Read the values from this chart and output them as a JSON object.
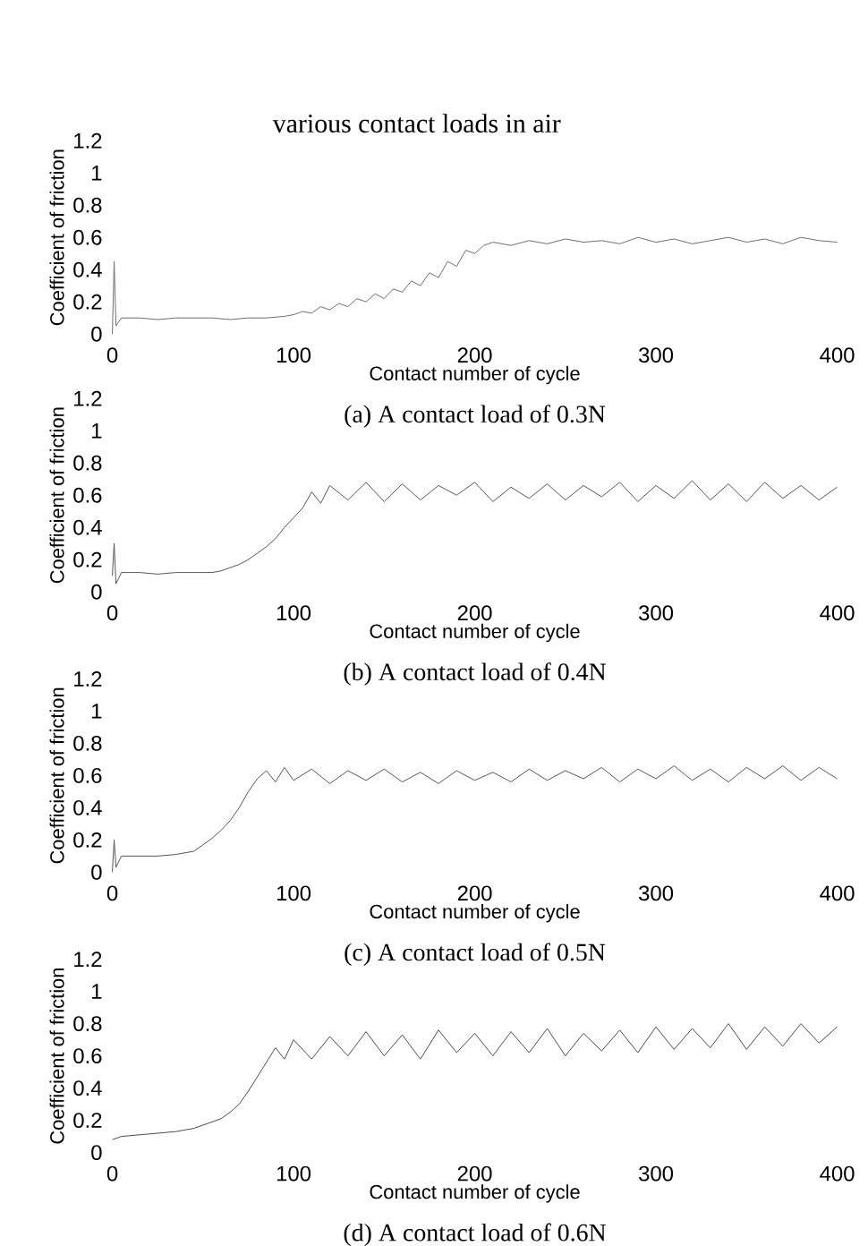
{
  "chart_data": [
    {
      "type": "line",
      "title": "various contact loads in air",
      "xlabel": "Contact number of cycle",
      "ylabel": "Coefficient of friction",
      "annotations": [
        "(a) A contact load of 0.3N"
      ],
      "marker": "none",
      "xlim": [
        0,
        400
      ],
      "ylim": [
        0,
        1.2
      ],
      "xticks": [
        0,
        100,
        200,
        300,
        400
      ],
      "yticks": [
        0,
        0.2,
        0.4,
        0.6,
        0.8,
        1,
        1.2
      ],
      "x": [
        0,
        1,
        2,
        5,
        15,
        25,
        35,
        45,
        55,
        65,
        75,
        85,
        95,
        100,
        105,
        110,
        115,
        120,
        125,
        130,
        135,
        140,
        145,
        150,
        155,
        160,
        165,
        170,
        175,
        180,
        185,
        190,
        195,
        200,
        205,
        210,
        220,
        230,
        240,
        250,
        260,
        270,
        280,
        290,
        300,
        310,
        320,
        330,
        340,
        350,
        360,
        370,
        380,
        390,
        400
      ],
      "series": [
        {
          "color": "#6e6e6e",
          "values": [
            0.0,
            0.45,
            0.05,
            0.1,
            0.1,
            0.09,
            0.1,
            0.1,
            0.1,
            0.09,
            0.1,
            0.1,
            0.11,
            0.12,
            0.14,
            0.13,
            0.17,
            0.15,
            0.19,
            0.17,
            0.22,
            0.2,
            0.25,
            0.22,
            0.28,
            0.26,
            0.33,
            0.3,
            0.38,
            0.35,
            0.45,
            0.42,
            0.52,
            0.5,
            0.55,
            0.57,
            0.55,
            0.58,
            0.56,
            0.59,
            0.57,
            0.58,
            0.56,
            0.6,
            0.57,
            0.59,
            0.56,
            0.58,
            0.6,
            0.57,
            0.59,
            0.56,
            0.6,
            0.58,
            0.57
          ]
        }
      ]
    },
    {
      "type": "line",
      "xlabel": "Contact number of cycle",
      "ylabel": "Coefficient of friction",
      "annotations": [
        "(b) A contact load of 0.4N"
      ],
      "marker": "none",
      "xlim": [
        0,
        400
      ],
      "ylim": [
        0,
        1.2
      ],
      "xticks": [
        0,
        100,
        200,
        300,
        400
      ],
      "yticks": [
        0,
        0.2,
        0.4,
        0.6,
        0.8,
        1,
        1.2
      ],
      "x": [
        0,
        1,
        2,
        5,
        15,
        25,
        35,
        45,
        55,
        60,
        65,
        70,
        75,
        80,
        85,
        90,
        95,
        100,
        105,
        110,
        115,
        120,
        130,
        140,
        150,
        160,
        170,
        180,
        190,
        200,
        210,
        220,
        230,
        240,
        250,
        260,
        270,
        280,
        290,
        300,
        310,
        320,
        330,
        340,
        350,
        360,
        370,
        380,
        390,
        400
      ],
      "series": [
        {
          "color": "#555555",
          "values": [
            0.1,
            0.3,
            0.05,
            0.12,
            0.12,
            0.11,
            0.12,
            0.12,
            0.12,
            0.13,
            0.15,
            0.17,
            0.2,
            0.24,
            0.28,
            0.33,
            0.4,
            0.46,
            0.52,
            0.62,
            0.55,
            0.66,
            0.57,
            0.68,
            0.56,
            0.67,
            0.57,
            0.66,
            0.6,
            0.68,
            0.56,
            0.65,
            0.58,
            0.67,
            0.57,
            0.66,
            0.59,
            0.68,
            0.56,
            0.66,
            0.58,
            0.69,
            0.57,
            0.67,
            0.56,
            0.68,
            0.58,
            0.66,
            0.57,
            0.65
          ]
        }
      ]
    },
    {
      "type": "line",
      "xlabel": "Contact number of cycle",
      "ylabel": "Coefficient of friction",
      "annotations": [
        "(c) A contact load of 0.5N"
      ],
      "marker": "none",
      "xlim": [
        0,
        400
      ],
      "ylim": [
        0,
        1.2
      ],
      "xticks": [
        0,
        100,
        200,
        300,
        400
      ],
      "yticks": [
        0,
        0.2,
        0.4,
        0.6,
        0.8,
        1,
        1.2
      ],
      "x": [
        0,
        1,
        2,
        5,
        15,
        25,
        35,
        45,
        50,
        55,
        60,
        65,
        70,
        75,
        80,
        85,
        90,
        95,
        100,
        110,
        120,
        130,
        140,
        150,
        160,
        170,
        180,
        190,
        200,
        210,
        220,
        230,
        240,
        250,
        260,
        270,
        280,
        290,
        300,
        310,
        320,
        330,
        340,
        350,
        360,
        370,
        380,
        390,
        400
      ],
      "series": [
        {
          "color": "#555555",
          "values": [
            0.0,
            0.2,
            0.03,
            0.1,
            0.1,
            0.1,
            0.11,
            0.13,
            0.17,
            0.21,
            0.26,
            0.32,
            0.4,
            0.5,
            0.58,
            0.63,
            0.56,
            0.65,
            0.57,
            0.64,
            0.55,
            0.63,
            0.57,
            0.64,
            0.56,
            0.62,
            0.55,
            0.63,
            0.57,
            0.62,
            0.56,
            0.64,
            0.57,
            0.63,
            0.58,
            0.65,
            0.56,
            0.64,
            0.58,
            0.66,
            0.57,
            0.64,
            0.56,
            0.65,
            0.58,
            0.66,
            0.57,
            0.65,
            0.58
          ]
        }
      ]
    },
    {
      "type": "line",
      "xlabel": "Contact number of cycle",
      "ylabel": "Coefficient of friction",
      "annotations": [
        "(d) A contact load of 0.6N"
      ],
      "marker": "none",
      "xlim": [
        0,
        400
      ],
      "ylim": [
        0,
        1.2
      ],
      "xticks": [
        0,
        100,
        200,
        300,
        400
      ],
      "yticks": [
        0,
        0.2,
        0.4,
        0.6,
        0.8,
        1,
        1.2
      ],
      "x": [
        0,
        5,
        15,
        25,
        35,
        45,
        50,
        55,
        60,
        65,
        70,
        75,
        80,
        85,
        90,
        95,
        100,
        110,
        120,
        130,
        140,
        150,
        160,
        170,
        180,
        190,
        200,
        210,
        220,
        230,
        240,
        250,
        260,
        270,
        280,
        290,
        300,
        310,
        320,
        330,
        340,
        350,
        360,
        370,
        380,
        390,
        400
      ],
      "series": [
        {
          "color": "#4a4a4a",
          "values": [
            0.08,
            0.1,
            0.11,
            0.12,
            0.13,
            0.15,
            0.17,
            0.19,
            0.21,
            0.25,
            0.3,
            0.38,
            0.47,
            0.56,
            0.65,
            0.58,
            0.7,
            0.58,
            0.72,
            0.6,
            0.75,
            0.6,
            0.73,
            0.58,
            0.76,
            0.62,
            0.74,
            0.6,
            0.75,
            0.62,
            0.77,
            0.6,
            0.74,
            0.63,
            0.76,
            0.62,
            0.78,
            0.64,
            0.77,
            0.65,
            0.8,
            0.64,
            0.78,
            0.66,
            0.8,
            0.68,
            0.78
          ]
        }
      ]
    }
  ]
}
